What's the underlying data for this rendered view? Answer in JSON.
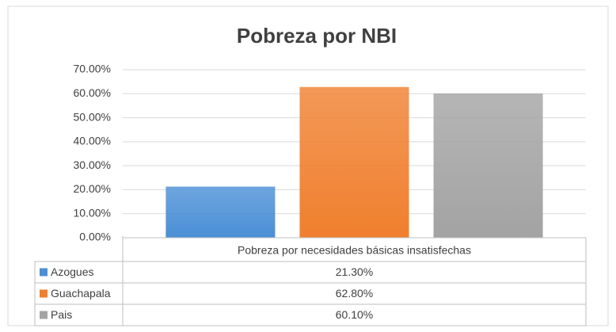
{
  "chart_data": {
    "type": "bar",
    "title": "Pobreza por NBI",
    "categories": [
      "Pobreza por necesidades básicas insatisfechas"
    ],
    "series": [
      {
        "name": "Azogues",
        "color": "#4a8fd6",
        "values": [
          21.3
        ],
        "value_labels": [
          "21.30%"
        ]
      },
      {
        "name": "Guachapala",
        "color": "#f07f2e",
        "values": [
          62.8
        ],
        "value_labels": [
          "62.80%"
        ]
      },
      {
        "name": "Pais",
        "color": "#a3a3a3",
        "values": [
          60.1
        ],
        "value_labels": [
          "60.10%"
        ]
      }
    ],
    "ylim": [
      0,
      70
    ],
    "yticks": [
      {
        "value": 0,
        "label": "0.00%"
      },
      {
        "value": 10,
        "label": "10.00%"
      },
      {
        "value": 20,
        "label": "20.00%"
      },
      {
        "value": 30,
        "label": "30.00%"
      },
      {
        "value": 40,
        "label": "40.00%"
      },
      {
        "value": 50,
        "label": "50.00%"
      },
      {
        "value": 60,
        "label": "60.00%"
      },
      {
        "value": 70,
        "label": "70.00%"
      }
    ],
    "grid": true,
    "data_table": true
  }
}
